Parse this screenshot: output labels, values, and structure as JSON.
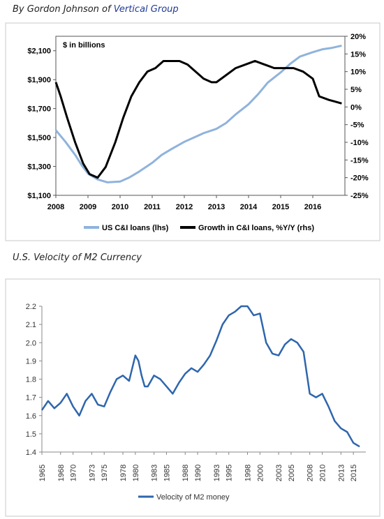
{
  "header": {
    "byline_prefix": "By Gordon Johnson of ",
    "byline_link": "Vertical Group",
    "chart2_caption": "U.S. Velocity of M2 Currency"
  },
  "colors": {
    "loans": "#8fb3dc",
    "growth": "#000000",
    "velocity": "#2e66ad",
    "link": "#1f3a93"
  },
  "chart_data": [
    {
      "type": "line",
      "title": "",
      "annotation": "$ in billions",
      "xlabel": "",
      "ylabel_left": "",
      "ylabel_right": "",
      "x_ticks": [
        "2008",
        "2009",
        "2010",
        "2011",
        "2012",
        "2013",
        "2014",
        "2015",
        "2016"
      ],
      "y_left_ticks": [
        "$1,100",
        "$1,300",
        "$1,500",
        "$1,700",
        "$1,900",
        "$2,100"
      ],
      "y_right_ticks": [
        "-25%",
        "-20%",
        "-15%",
        "-10%",
        "-5%",
        "0%",
        "5%",
        "10%",
        "15%",
        "20%"
      ],
      "xlim": [
        2008,
        2017
      ],
      "ylim_left": [
        1100,
        2200
      ],
      "ylim_right": [
        -25,
        20
      ],
      "grid": false,
      "legend": "bottom",
      "series": [
        {
          "name": "US C&I loans (lhs)",
          "axis": "left",
          "x": [
            2008.0,
            2008.3,
            2008.6,
            2008.8,
            2009.0,
            2009.3,
            2009.6,
            2010.0,
            2010.3,
            2010.6,
            2011.0,
            2011.3,
            2011.6,
            2012.0,
            2012.3,
            2012.6,
            2013.0,
            2013.3,
            2013.6,
            2014.0,
            2014.3,
            2014.6,
            2015.0,
            2015.3,
            2015.6,
            2016.0,
            2016.3,
            2016.6,
            2016.9
          ],
          "y": [
            1550,
            1470,
            1380,
            1310,
            1250,
            1210,
            1190,
            1195,
            1225,
            1265,
            1325,
            1380,
            1420,
            1470,
            1500,
            1530,
            1560,
            1600,
            1660,
            1730,
            1800,
            1880,
            1950,
            2010,
            2060,
            2090,
            2110,
            2120,
            2135
          ]
        },
        {
          "name": "Growth in C&I loans, %Y/Y (rhs)",
          "axis": "right",
          "x": [
            2008.0,
            2008.15,
            2008.35,
            2008.6,
            2008.85,
            2009.05,
            2009.3,
            2009.55,
            2009.85,
            2010.1,
            2010.35,
            2010.6,
            2010.85,
            2011.1,
            2011.35,
            2011.6,
            2011.85,
            2012.1,
            2012.35,
            2012.6,
            2012.85,
            2013.0,
            2013.3,
            2013.6,
            2013.9,
            2014.2,
            2014.5,
            2014.8,
            2015.1,
            2015.4,
            2015.7,
            2016.0,
            2016.2,
            2016.5,
            2016.7,
            2016.9
          ],
          "y": [
            7,
            3,
            -3,
            -10,
            -16,
            -19,
            -20,
            -17,
            -10,
            -3,
            3,
            7,
            10,
            11,
            13,
            13,
            13,
            12,
            10,
            8,
            7,
            7,
            9,
            11,
            12,
            13,
            12,
            11,
            11,
            11,
            10,
            8,
            3,
            2,
            1.5,
            1
          ]
        }
      ]
    },
    {
      "type": "line",
      "title": "",
      "xlabel": "",
      "ylabel": "",
      "x_ticks": [
        "1965",
        "1968",
        "1970",
        "1973",
        "1975",
        "1978",
        "1980",
        "1983",
        "1985",
        "1988",
        "1990",
        "1993",
        "1995",
        "1998",
        "2000",
        "2003",
        "2005",
        "2008",
        "2010",
        "2013",
        "2015"
      ],
      "y_ticks": [
        "1.4",
        "1.5",
        "1.6",
        "1.7",
        "1.8",
        "1.9",
        "2.0",
        "2.1",
        "2.2"
      ],
      "xlim": [
        1965,
        2017
      ],
      "ylim": [
        1.4,
        2.2
      ],
      "grid": false,
      "legend": "bottom",
      "series": [
        {
          "name": "Velocity of M2 money",
          "x": [
            1965,
            1966,
            1967,
            1968,
            1969,
            1970,
            1971,
            1972,
            1973,
            1974,
            1975,
            1976,
            1977,
            1978,
            1979,
            1980,
            1980.5,
            1981,
            1981.5,
            1982,
            1983,
            1984,
            1985,
            1986,
            1987,
            1988,
            1989,
            1990,
            1991,
            1992,
            1993,
            1994,
            1995,
            1996,
            1997,
            1998,
            1999,
            2000,
            2001,
            2002,
            2003,
            2004,
            2005,
            2006,
            2007,
            2008,
            2009,
            2010,
            2011,
            2012,
            2013,
            2014,
            2015,
            2016
          ],
          "y": [
            1.63,
            1.68,
            1.64,
            1.67,
            1.72,
            1.65,
            1.6,
            1.68,
            1.72,
            1.66,
            1.65,
            1.73,
            1.8,
            1.82,
            1.79,
            1.93,
            1.9,
            1.82,
            1.76,
            1.76,
            1.82,
            1.8,
            1.76,
            1.72,
            1.78,
            1.83,
            1.86,
            1.84,
            1.88,
            1.93,
            2.01,
            2.1,
            2.15,
            2.17,
            2.2,
            2.2,
            2.15,
            2.16,
            2.0,
            1.94,
            1.93,
            1.99,
            2.02,
            2.0,
            1.95,
            1.72,
            1.7,
            1.72,
            1.65,
            1.57,
            1.53,
            1.51,
            1.45,
            1.43
          ]
        }
      ]
    }
  ]
}
